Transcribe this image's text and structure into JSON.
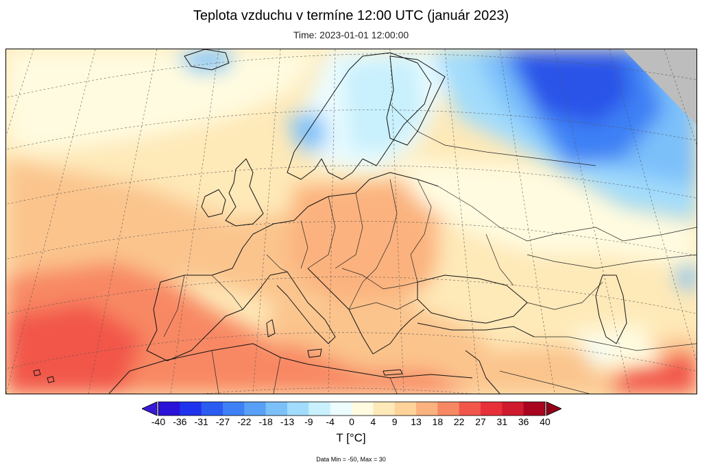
{
  "title": "Teplota vzduchu v termíne 12:00 UTC (január 2023)",
  "subtitle": "Time: 2023-01-01 12:00:00",
  "legend": {
    "unit": "T [°C]",
    "ticks": [
      "-40",
      "-36",
      "-31",
      "-27",
      "-22",
      "-18",
      "-13",
      "-9",
      "-4",
      "0",
      "4",
      "9",
      "13",
      "18",
      "22",
      "27",
      "31",
      "36",
      "40"
    ],
    "colors": [
      "#2a12d8",
      "#1f33ee",
      "#2a5cf2",
      "#3e80f5",
      "#58a0f7",
      "#7cc0fa",
      "#a2dcfc",
      "#c8f0fd",
      "#ecfcff",
      "#fffbe0",
      "#fee9b8",
      "#fdd39a",
      "#fbb27e",
      "#f88863",
      "#f2564a",
      "#e8303b",
      "#d01a2e",
      "#a8041f"
    ],
    "under_color": "#3a18d8",
    "over_color": "#900018"
  },
  "data_range": "Data Min = -50, Max = 30",
  "map": {
    "projection": "conic",
    "region": "Europe",
    "missing_color": "#bdbdbd",
    "field_colors": {
      "very_cold": "#2a52e8",
      "cold": "#5aa2f6",
      "cool": "#a6defb",
      "near_zero": "#fffbe0",
      "mild": "#fee9b8",
      "warm": "#fbc48d",
      "hot": "#f88863",
      "very_hot": "#f2564a"
    }
  }
}
